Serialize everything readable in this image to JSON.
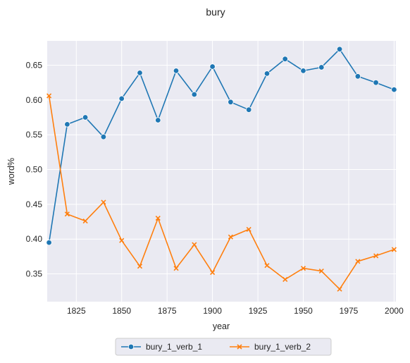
{
  "chart_data": {
    "type": "line",
    "title": "bury",
    "xlabel": "year",
    "ylabel": "word%",
    "xlim": [
      1809,
      2001
    ],
    "ylim": [
      0.31,
      0.685
    ],
    "x_ticks": [
      1825,
      1850,
      1875,
      1900,
      1925,
      1950,
      1975,
      2000
    ],
    "y_ticks": [
      0.35,
      0.4,
      0.45,
      0.5,
      0.55,
      0.6,
      0.65
    ],
    "y_tick_labels": [
      "0.35",
      "0.40",
      "0.45",
      "0.50",
      "0.55",
      "0.60",
      "0.65"
    ],
    "grid": true,
    "legend_position": "bottom-center",
    "x": [
      1810,
      1820,
      1830,
      1840,
      1850,
      1860,
      1870,
      1880,
      1890,
      1900,
      1910,
      1920,
      1930,
      1940,
      1950,
      1960,
      1970,
      1980,
      1990,
      2000
    ],
    "series": [
      {
        "name": "bury_1_verb_1",
        "color": "#1f77b4",
        "marker": "circle",
        "values": [
          0.395,
          0.565,
          0.575,
          0.547,
          0.602,
          0.639,
          0.571,
          0.642,
          0.608,
          0.648,
          0.597,
          0.586,
          0.638,
          0.659,
          0.642,
          0.647,
          0.673,
          0.634,
          0.625,
          0.615
        ]
      },
      {
        "name": "bury_1_verb_2",
        "color": "#ff7f0e",
        "marker": "x",
        "values": [
          0.606,
          0.436,
          0.426,
          0.453,
          0.398,
          0.361,
          0.43,
          0.358,
          0.392,
          0.352,
          0.403,
          0.414,
          0.362,
          0.342,
          0.358,
          0.354,
          0.328,
          0.368,
          0.376,
          0.385
        ]
      }
    ]
  }
}
